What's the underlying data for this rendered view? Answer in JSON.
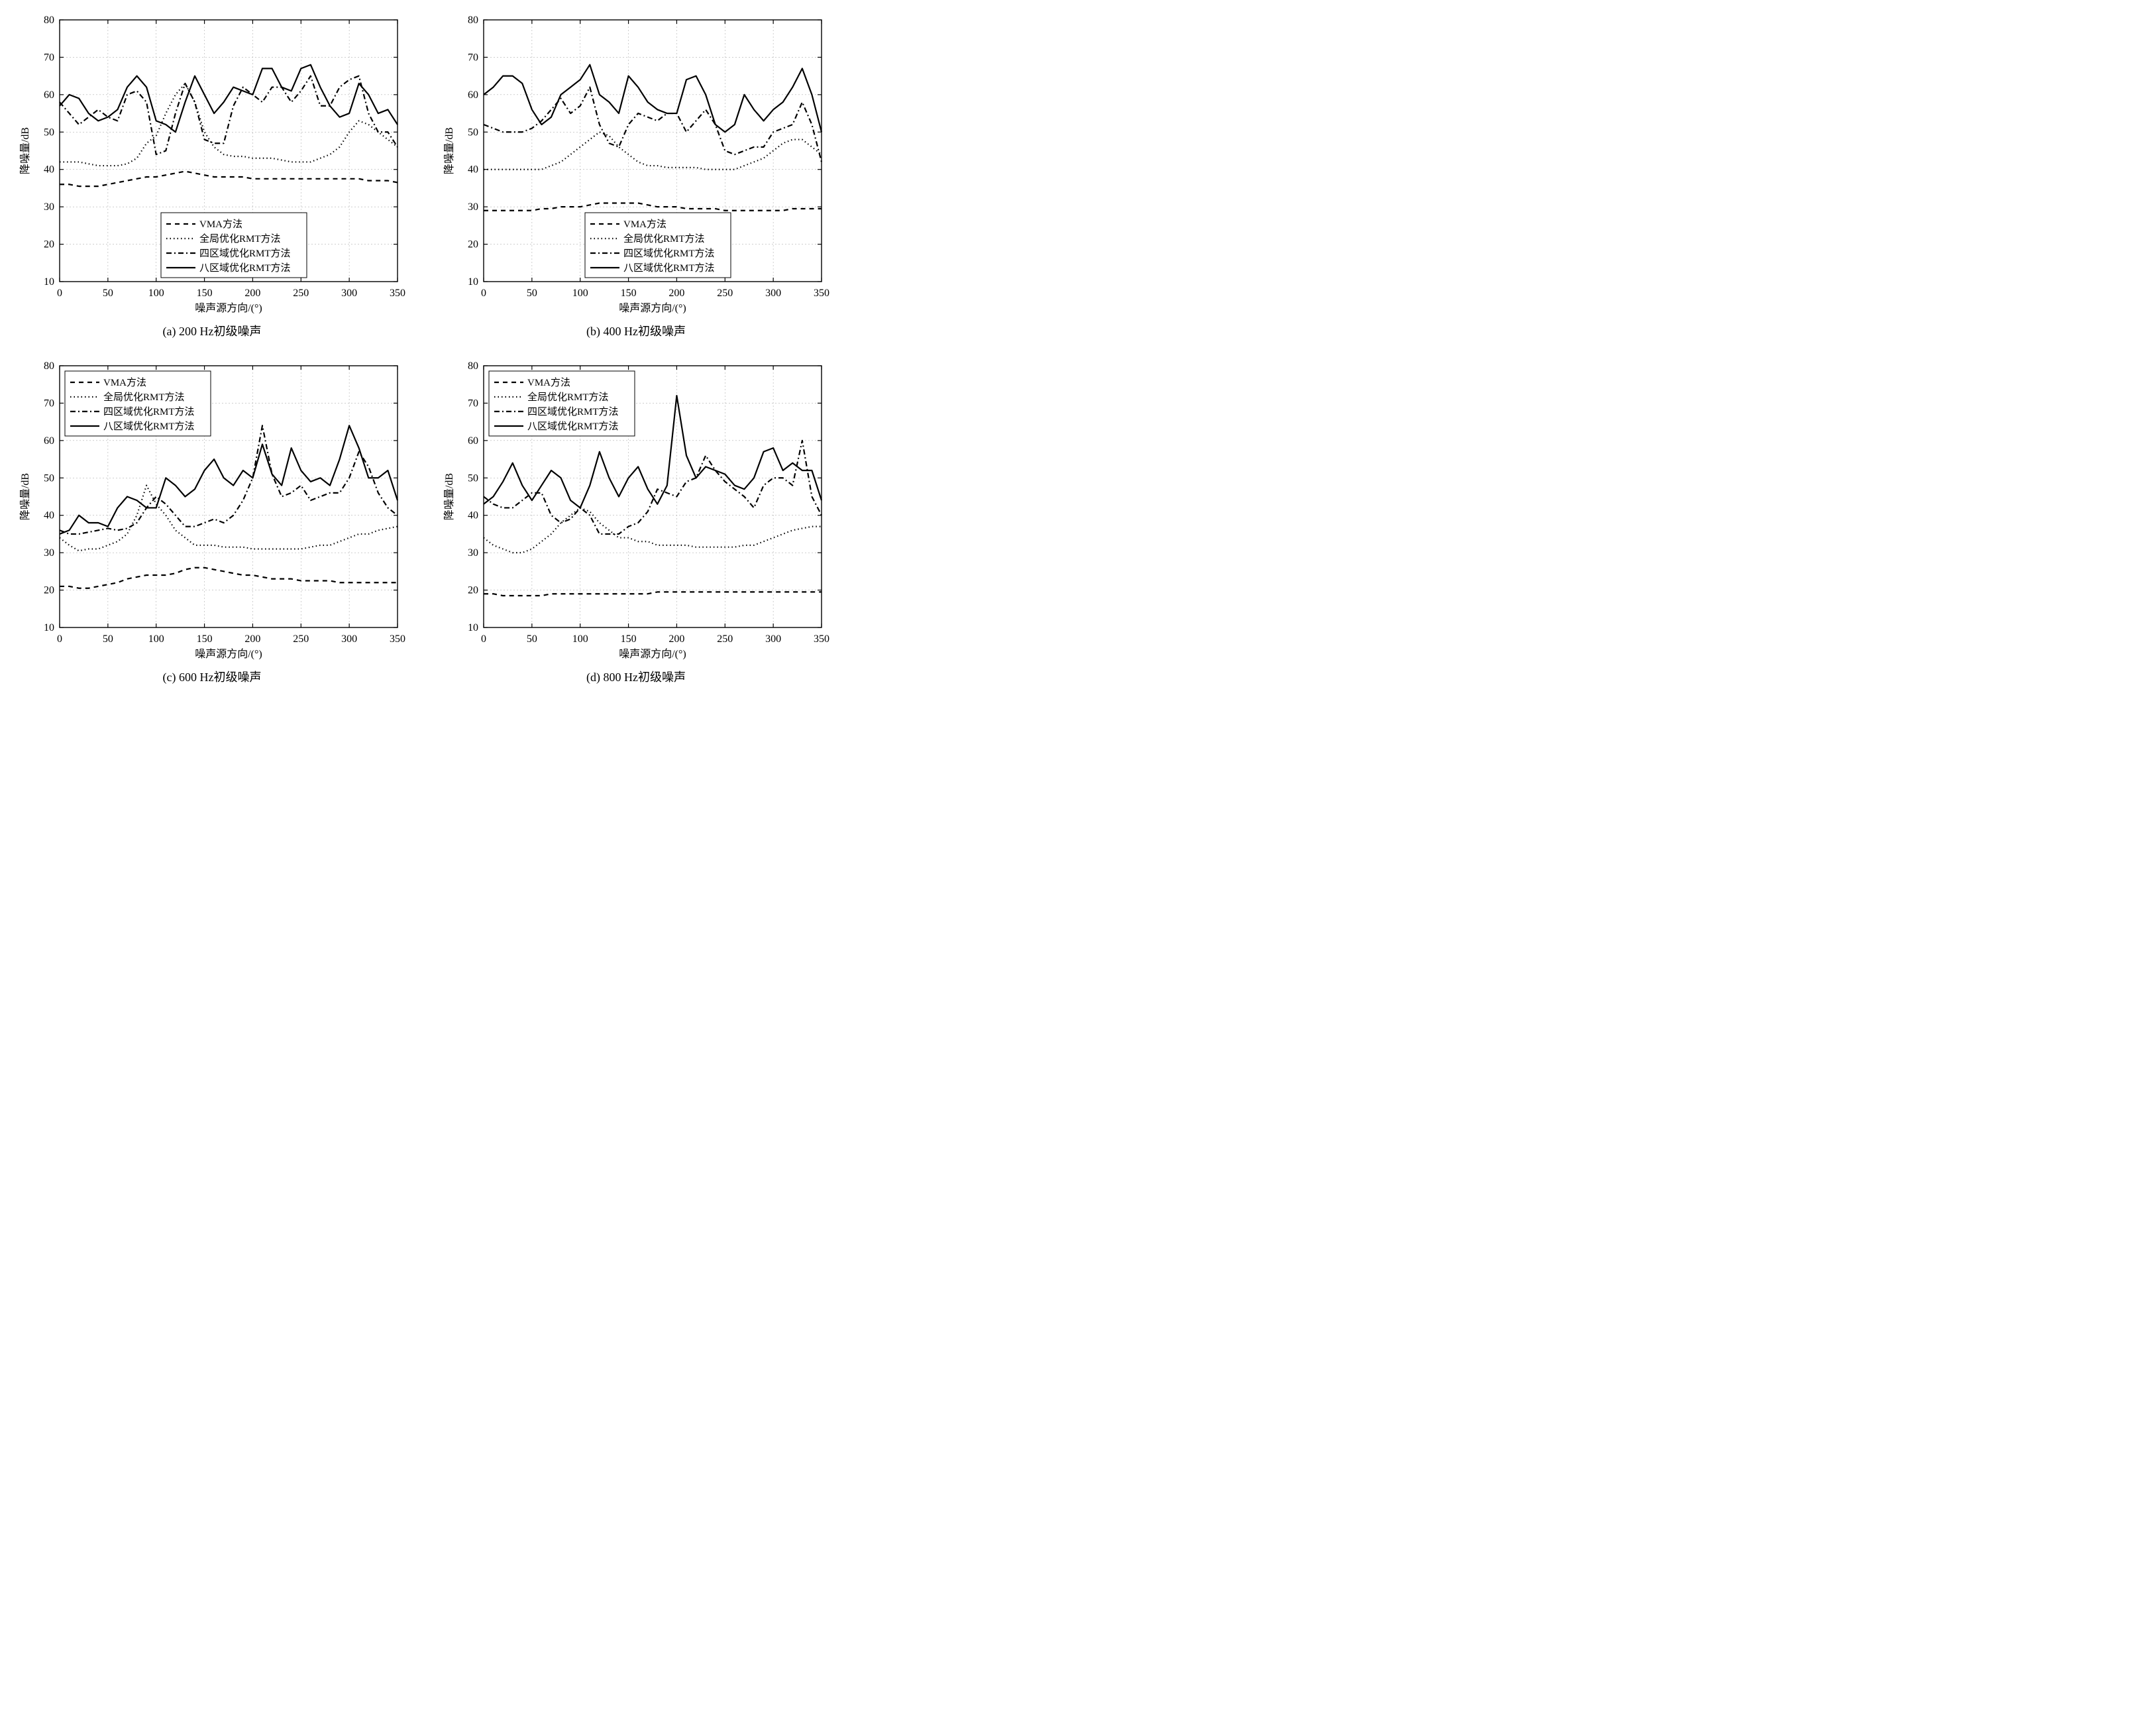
{
  "global": {
    "xlim": [
      0,
      350
    ],
    "ylim": [
      10,
      80
    ],
    "xticks": [
      0,
      50,
      100,
      150,
      200,
      250,
      300,
      350
    ],
    "yticks": [
      10,
      20,
      30,
      40,
      50,
      60,
      70,
      80
    ],
    "xlabel": "噪声源方向/(°)",
    "ylabel": "降噪量/dB",
    "plot_bg": "#ffffff",
    "grid_color": "#b0b0b0",
    "axis_color": "#000000",
    "axis_fontsize": 16,
    "tick_fontsize": 16,
    "line_width": 2.2,
    "legend_fontsize": 15,
    "legend_items": [
      {
        "label": "VMA方法",
        "dash": "7,6"
      },
      {
        "label": "全局优化RMT方法",
        "dash": "1.5,4"
      },
      {
        "label": "四区域优化RMT方法",
        "dash": "8,4,2,4"
      },
      {
        "label": "八区域优化RMT方法",
        "dash": ""
      }
    ],
    "series_x": [
      0,
      10,
      20,
      30,
      40,
      50,
      60,
      70,
      80,
      90,
      100,
      110,
      120,
      130,
      140,
      150,
      160,
      170,
      180,
      190,
      200,
      210,
      220,
      230,
      240,
      250,
      260,
      270,
      280,
      290,
      300,
      310,
      320,
      330,
      340,
      350
    ]
  },
  "panels": [
    {
      "id": "a",
      "subtitle": "(a) 200 Hz初级噪声",
      "legend_pos": "bottom-in",
      "series": [
        {
          "dash": "7,6",
          "y": [
            36,
            36,
            35.5,
            35.5,
            35.5,
            36,
            36.5,
            37,
            37.5,
            38,
            38,
            38.5,
            39,
            39.5,
            39,
            38.5,
            38,
            38,
            38,
            38,
            37.5,
            37.5,
            37.5,
            37.5,
            37.5,
            37.5,
            37.5,
            37.5,
            37.5,
            37.5,
            37.5,
            37.5,
            37,
            37,
            37,
            36.5
          ]
        },
        {
          "dash": "1.5,4",
          "y": [
            42,
            42,
            42,
            41.5,
            41,
            41,
            41,
            41.5,
            43,
            47,
            49,
            55,
            60,
            63,
            58,
            50,
            46,
            44,
            43.5,
            43.5,
            43,
            43,
            43,
            42.5,
            42,
            42,
            42,
            43,
            44,
            46,
            50,
            53,
            52,
            50,
            48,
            46
          ]
        },
        {
          "dash": "8,4,2,4",
          "y": [
            58,
            55,
            52,
            54,
            56,
            54,
            53,
            60,
            61,
            58,
            44,
            45,
            55,
            63,
            58,
            48,
            47,
            47,
            57,
            62,
            60,
            58,
            62,
            62,
            58,
            61,
            65,
            57,
            57,
            62,
            64,
            65,
            55,
            50,
            50,
            46
          ]
        },
        {
          "dash": "",
          "y": [
            57,
            60,
            59,
            55,
            53,
            54,
            56,
            62,
            65,
            62,
            53,
            52,
            50,
            58,
            65,
            60,
            55,
            58,
            62,
            61,
            60,
            67,
            67,
            62,
            61,
            67,
            68,
            62,
            57,
            54,
            55,
            63,
            60,
            55,
            56,
            52
          ]
        }
      ]
    },
    {
      "id": "b",
      "subtitle": "(b) 400 Hz初级噪声",
      "legend_pos": "bottom-in",
      "series": [
        {
          "dash": "7,6",
          "y": [
            29,
            29,
            29,
            29,
            29,
            29,
            29.5,
            29.5,
            30,
            30,
            30,
            30.5,
            31,
            31,
            31,
            31,
            31,
            30.5,
            30,
            30,
            30,
            29.5,
            29.5,
            29.5,
            29.5,
            29,
            29,
            29,
            29,
            29,
            29,
            29,
            29.5,
            29.5,
            29.5,
            29.5
          ]
        },
        {
          "dash": "1.5,4",
          "y": [
            40,
            40,
            40,
            40,
            40,
            40,
            40,
            41,
            42,
            44,
            46,
            48,
            50,
            49,
            46,
            44,
            42,
            41,
            41,
            40.5,
            40.5,
            40.5,
            40.5,
            40,
            40,
            40,
            40,
            41,
            42,
            43,
            45,
            47,
            48,
            48,
            46,
            44
          ]
        },
        {
          "dash": "8,4,2,4",
          "y": [
            52,
            51,
            50,
            50,
            50,
            51,
            53,
            56,
            59,
            55,
            57,
            62,
            52,
            47,
            46,
            52,
            55,
            54,
            53,
            55,
            55,
            50,
            53,
            56,
            52,
            45,
            44,
            45,
            46,
            46,
            50,
            51,
            52,
            58,
            52,
            42
          ]
        },
        {
          "dash": "",
          "y": [
            60,
            62,
            65,
            65,
            63,
            56,
            52,
            54,
            60,
            62,
            64,
            68,
            60,
            58,
            55,
            65,
            62,
            58,
            56,
            55,
            55,
            64,
            65,
            60,
            52,
            50,
            52,
            60,
            56,
            53,
            56,
            58,
            62,
            67,
            60,
            50
          ]
        }
      ]
    },
    {
      "id": "c",
      "subtitle": "(c) 600 Hz初级噪声",
      "legend_pos": "top-in",
      "series": [
        {
          "dash": "7,6",
          "y": [
            21,
            21,
            20.5,
            20.5,
            21,
            21.5,
            22,
            23,
            23.5,
            24,
            24,
            24,
            24.5,
            25.5,
            26,
            26,
            25.5,
            25,
            24.5,
            24,
            24,
            23.5,
            23,
            23,
            23,
            22.5,
            22.5,
            22.5,
            22.5,
            22,
            22,
            22,
            22,
            22,
            22,
            22
          ]
        },
        {
          "dash": "1.5,4",
          "y": [
            34,
            32,
            30.5,
            31,
            31,
            32,
            33,
            35,
            40,
            48,
            43,
            40,
            36,
            34,
            32,
            32,
            32,
            31.5,
            31.5,
            31.5,
            31,
            31,
            31,
            31,
            31,
            31,
            31.5,
            32,
            32,
            33,
            34,
            35,
            35,
            36,
            36.5,
            37
          ]
        },
        {
          "dash": "8,4,2,4",
          "y": [
            36,
            35,
            35,
            35.5,
            36,
            36.5,
            36,
            36.5,
            38,
            42,
            45,
            43,
            40,
            37,
            37,
            38,
            39,
            38,
            40,
            44,
            50,
            64,
            51,
            45,
            46,
            48,
            44,
            45,
            46,
            46,
            50,
            57,
            53,
            46,
            42,
            40
          ]
        },
        {
          "dash": "",
          "y": [
            35,
            36,
            40,
            38,
            38,
            37,
            42,
            45,
            44,
            42,
            42,
            50,
            48,
            45,
            47,
            52,
            55,
            50,
            48,
            52,
            50,
            59,
            51,
            48,
            58,
            52,
            49,
            50,
            48,
            55,
            64,
            58,
            50,
            50,
            52,
            44
          ]
        }
      ]
    },
    {
      "id": "d",
      "subtitle": "(d) 800 Hz初级噪声",
      "legend_pos": "top-in",
      "series": [
        {
          "dash": "7,6",
          "y": [
            19,
            19,
            18.5,
            18.5,
            18.5,
            18.5,
            18.5,
            19,
            19,
            19,
            19,
            19,
            19,
            19,
            19,
            19,
            19,
            19,
            19.5,
            19.5,
            19.5,
            19.5,
            19.5,
            19.5,
            19.5,
            19.5,
            19.5,
            19.5,
            19.5,
            19.5,
            19.5,
            19.5,
            19.5,
            19.5,
            19.5,
            19.5
          ]
        },
        {
          "dash": "1.5,4",
          "y": [
            34,
            32,
            31,
            30,
            30,
            31,
            33,
            35,
            38,
            40,
            42,
            41,
            38,
            36,
            34,
            34,
            33,
            33,
            32,
            32,
            32,
            32,
            31.5,
            31.5,
            31.5,
            31.5,
            31.5,
            32,
            32,
            33,
            34,
            35,
            36,
            36.5,
            37,
            37
          ]
        },
        {
          "dash": "8,4,2,4",
          "y": [
            45,
            43,
            42,
            42,
            44,
            46,
            46,
            40,
            38,
            39,
            42,
            40,
            35,
            35,
            35,
            37,
            38,
            41,
            47,
            46,
            45,
            49,
            50,
            56,
            52,
            49,
            47,
            45,
            42,
            48,
            50,
            50,
            48,
            60,
            45,
            40
          ]
        },
        {
          "dash": "",
          "y": [
            43,
            45,
            49,
            54,
            48,
            44,
            48,
            52,
            50,
            44,
            42,
            48,
            57,
            50,
            45,
            50,
            53,
            47,
            43,
            48,
            72,
            56,
            50,
            53,
            52,
            51,
            48,
            47,
            50,
            57,
            58,
            52,
            54,
            52,
            52,
            44
          ]
        }
      ]
    }
  ]
}
